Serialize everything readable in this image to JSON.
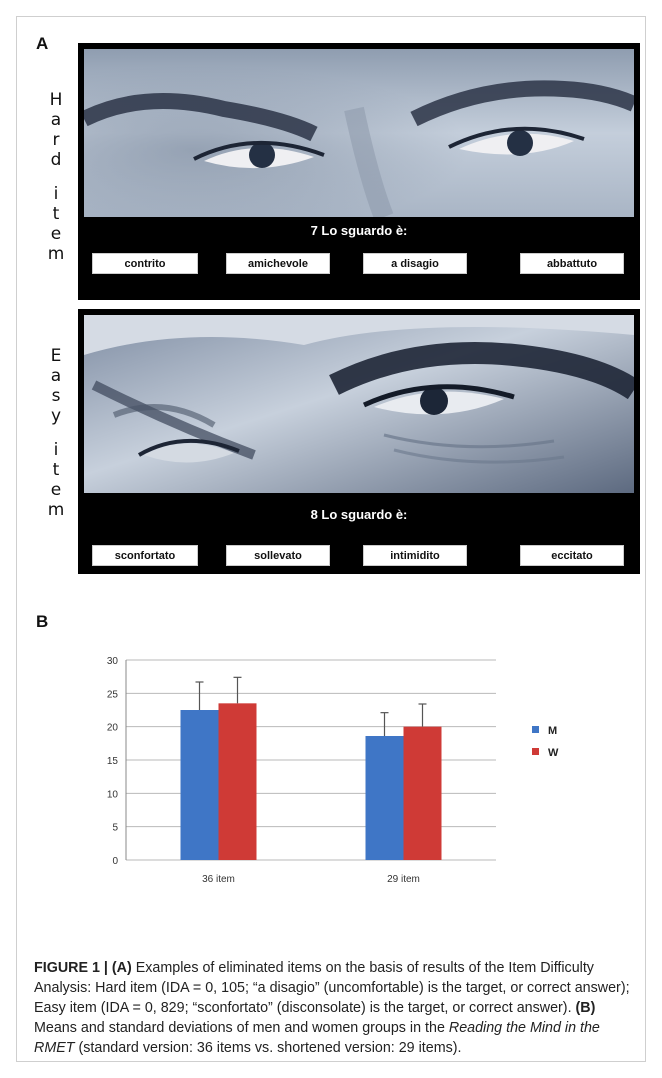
{
  "panel_a": {
    "letter": "A",
    "hard_label_letters": [
      "H",
      "a",
      "r",
      "d",
      "",
      "i",
      "t",
      "e",
      "m"
    ],
    "easy_label_letters": [
      "E",
      "a",
      "s",
      "y",
      "",
      "i",
      "t",
      "e",
      "m"
    ],
    "hard": {
      "question": "7 Lo sguardo è:",
      "options": [
        "contrito",
        "amichevole",
        "a disagio",
        "abbattuto"
      ]
    },
    "easy": {
      "question": "8 Lo sguardo è:",
      "options": [
        "sconfortato",
        "sollevato",
        "intimidito",
        "eccitato"
      ]
    }
  },
  "panel_b": {
    "letter": "B"
  },
  "chart_data": {
    "type": "bar",
    "categories": [
      "36 item",
      "29 item"
    ],
    "series": [
      {
        "name": "M",
        "values": [
          22.5,
          18.6
        ],
        "errors": [
          4.2,
          3.5
        ],
        "color": "#3f76c6"
      },
      {
        "name": "W",
        "values": [
          23.5,
          20.0
        ],
        "errors": [
          3.9,
          3.4
        ],
        "color": "#cf3a36"
      }
    ],
    "ylim": [
      0,
      30
    ],
    "yticks": [
      0,
      5,
      10,
      15,
      20,
      25,
      30
    ],
    "grid": true,
    "legend_position": "right"
  },
  "caption": {
    "label": "FIGURE 1 | ",
    "a_ref": "(A)",
    "text1": " Examples of eliminated items on the basis of results of the Item Difficulty Analysis: Hard item (IDA = 0, 105; “a disagio” (uncomfortable) is the target, or correct answer); Easy item (IDA = 0, 829; “sconfortato” (disconsolate) is the target, or correct answer). ",
    "b_ref": "(B)",
    "text2": " Means and standard deviations of men and women groups in the ",
    "italic": "Reading the Mind in the RMET",
    "text3": " (standard version: 36 items vs. shortened version: 29 items)."
  },
  "colors": {
    "stimulus_bg": "#000000",
    "face_tone_light": "#b4c0cf",
    "face_tone_dark": "#2a3344"
  }
}
